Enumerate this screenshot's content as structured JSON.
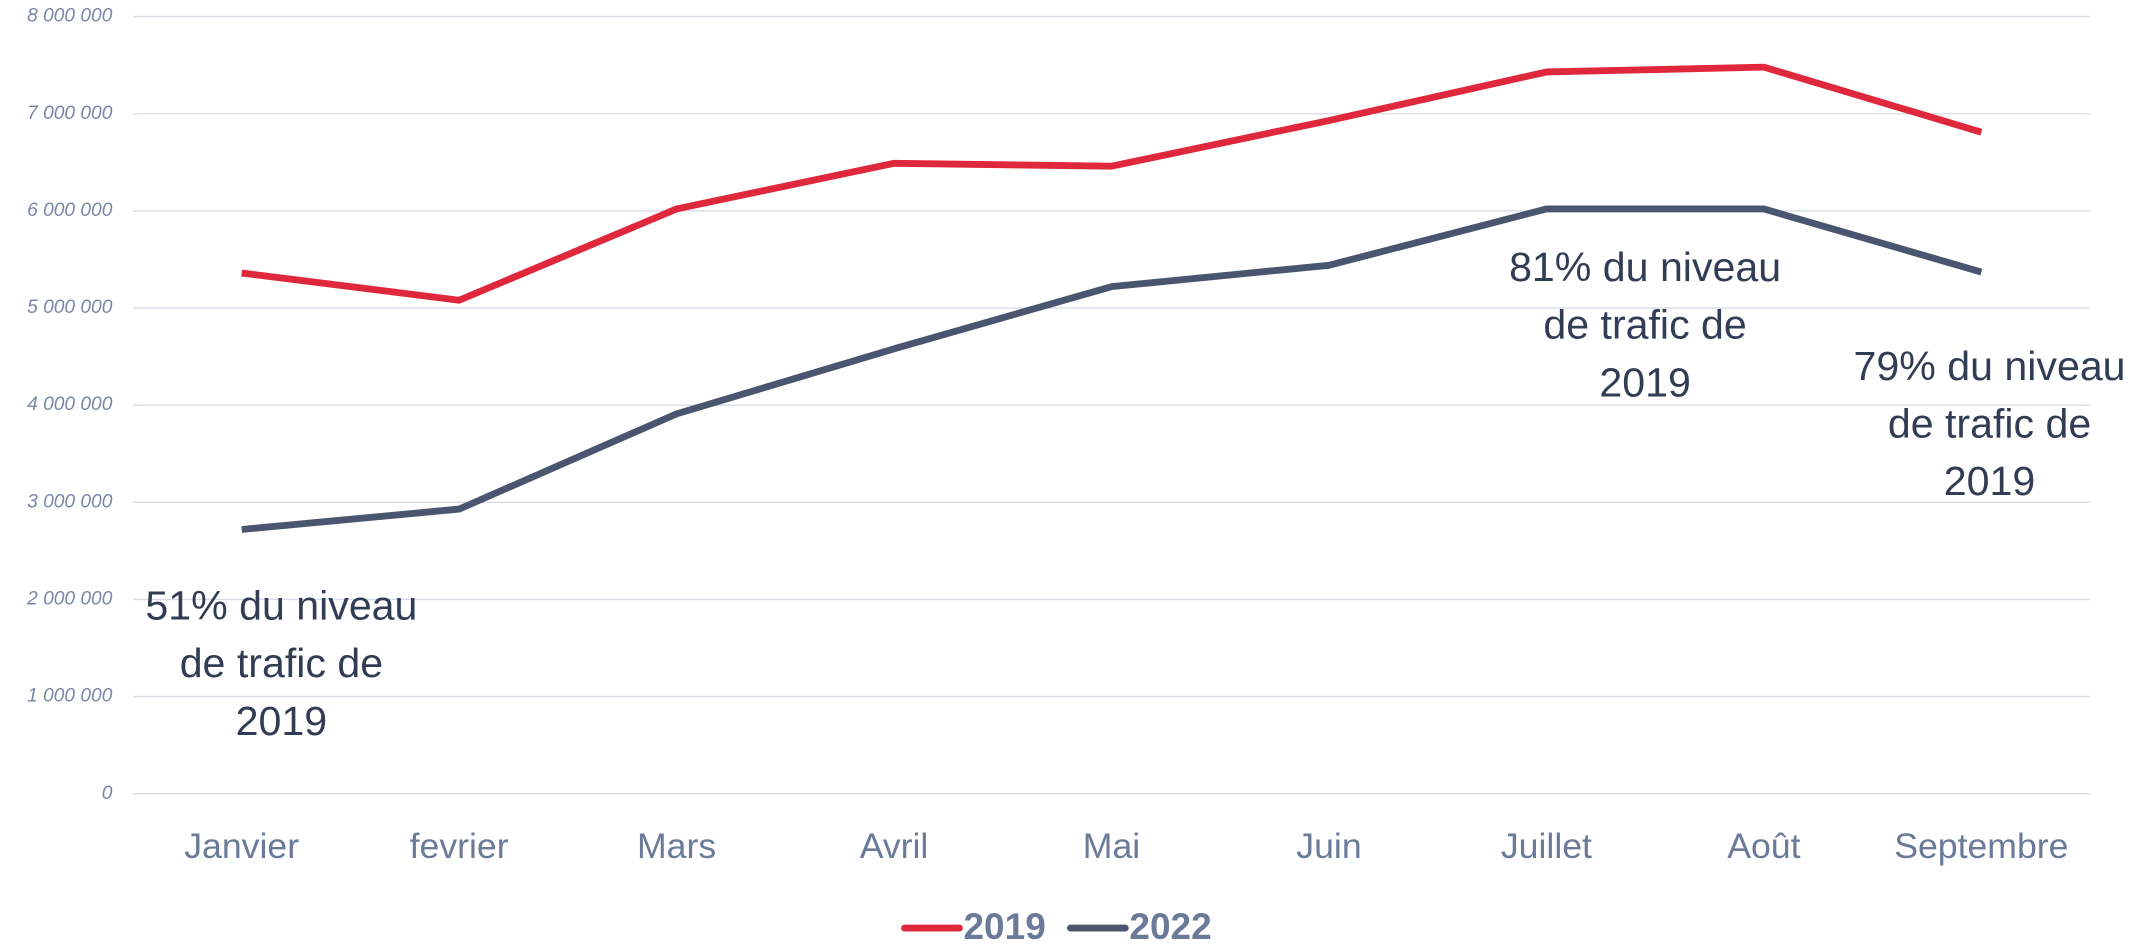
{
  "chart_data": {
    "type": "line",
    "categories": [
      "Janvier",
      "fevrier",
      "Mars",
      "Avril",
      "Mai",
      "Juin",
      "Juillet",
      "Août",
      "Septembre"
    ],
    "series": [
      {
        "name": "2019",
        "color": "#e0283c",
        "values": [
          5360000,
          5080000,
          6020000,
          6490000,
          6460000,
          6930000,
          7430000,
          7480000,
          6810000
        ]
      },
      {
        "name": "2022",
        "color": "#4a5670",
        "values": [
          2720000,
          2930000,
          3910000,
          4580000,
          5220000,
          5440000,
          6020000,
          6020000,
          5370000
        ]
      }
    ],
    "ylim": [
      0,
      8000000
    ],
    "yticks": [
      0,
      {
        "value": 1000000,
        "label": "1 000 000"
      },
      {
        "value": 2000000,
        "label": "2 000 000"
      },
      {
        "value": 3000000,
        "label": "3 000 000"
      },
      {
        "value": 4000000,
        "label": "4 000 000"
      },
      {
        "value": 5000000,
        "label": "5 000 000"
      },
      {
        "value": 6000000,
        "label": "6 000 000"
      },
      {
        "value": 7000000,
        "label": "7 000 000"
      },
      {
        "value": 8000000,
        "label": "8 000 000"
      }
    ],
    "grid": true,
    "legend": "bottom",
    "annotations": [
      {
        "text": "51% du niveau de trafic de 2019",
        "category": "Janvier"
      },
      {
        "text": "81% du niveau de trafic de 2019",
        "category": "Juillet"
      },
      {
        "text": "79% du niveau de trafic de 2019",
        "category": "Septembre"
      }
    ]
  }
}
